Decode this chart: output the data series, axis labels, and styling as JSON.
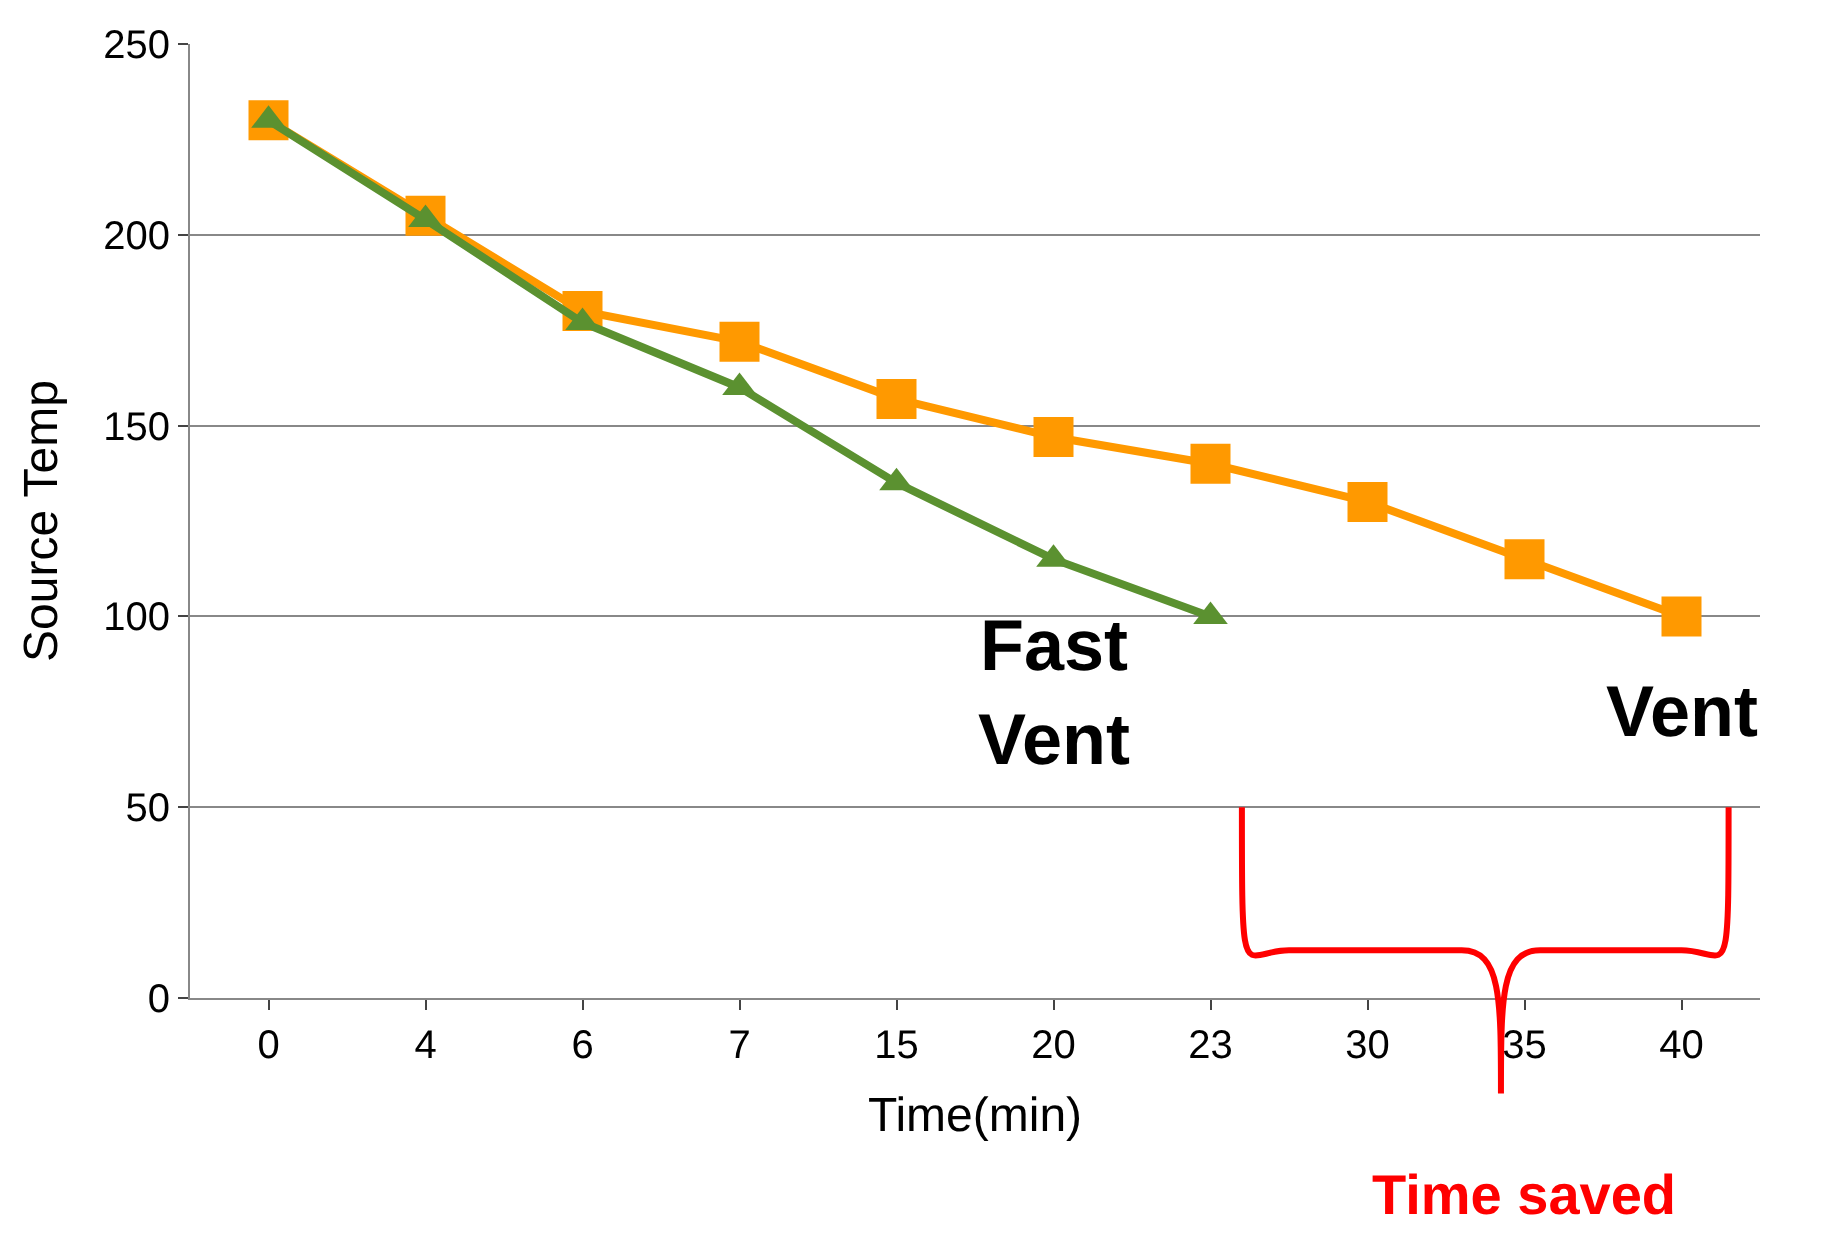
{
  "chart_data": {
    "type": "line",
    "ylabel": "Source Temp",
    "xlabel": "Time(min)",
    "categories": [
      "0",
      "4",
      "6",
      "7",
      "15",
      "20",
      "23",
      "30",
      "35",
      "40"
    ],
    "series": [
      {
        "name": "Vent",
        "color": "#ff9900",
        "marker": "square",
        "values": [
          230,
          205,
          180,
          172,
          157,
          147,
          140,
          130,
          115,
          100
        ]
      },
      {
        "name": "Fast Vent",
        "color": "#5b9130",
        "marker": "triangle",
        "values": [
          230,
          204,
          177,
          160,
          135,
          115,
          100,
          null,
          null,
          null
        ]
      }
    ],
    "ylim": [
      0,
      250
    ],
    "yticks": [
      0,
      50,
      100,
      150,
      200,
      250
    ],
    "grid": "y",
    "legend": false,
    "line_style": "solid",
    "annotations": [
      "Time saved"
    ]
  }
}
